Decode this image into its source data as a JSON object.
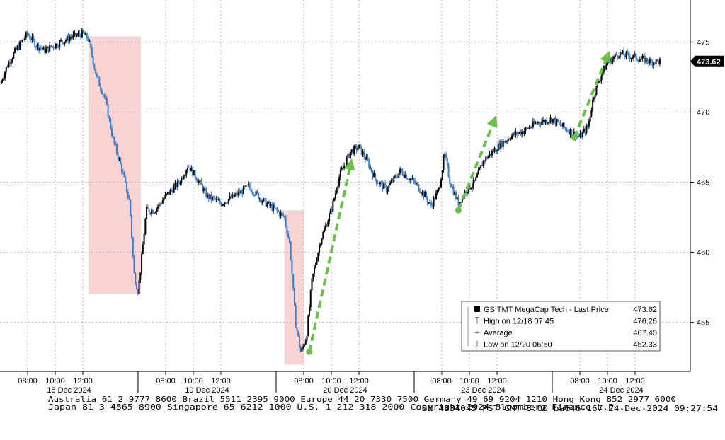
{
  "chart_data": {
    "type": "candlestick",
    "instrument": "GS TMT MegaCap Tech",
    "y_range": [
      451.5,
      478
    ],
    "y_ticks": [
      455,
      460,
      465,
      470,
      475
    ],
    "grid": true,
    "last_price": 473.62,
    "days": [
      {
        "label": "18 Dec 2024",
        "times": [
          "08:00",
          "10:00",
          "12:00"
        ]
      },
      {
        "label": "19 Dec 2024",
        "times": [
          "08:00",
          "10:00",
          "12:00"
        ]
      },
      {
        "label": "20 Dec 2024",
        "times": [
          "08:00",
          "10:00",
          "12:00"
        ]
      },
      {
        "label": "23 Dec 2024",
        "times": [
          "08:00",
          "10:00",
          "12:00"
        ]
      },
      {
        "label": "24 Dec 2024",
        "times": [
          "08:00",
          "10:00",
          "12:00"
        ]
      }
    ],
    "series": [
      {
        "x": 0.0,
        "y": 472
      },
      {
        "x": 0.3,
        "y": 473.5
      },
      {
        "x": 0.6,
        "y": 474.5
      },
      {
        "x": 1.0,
        "y": 475.6
      },
      {
        "x": 1.3,
        "y": 474.8
      },
      {
        "x": 1.6,
        "y": 474.4
      },
      {
        "x": 2.0,
        "y": 474.8
      },
      {
        "x": 2.5,
        "y": 475.3
      },
      {
        "x": 3.0,
        "y": 475.6
      },
      {
        "x": 3.2,
        "y": 475.2
      },
      {
        "x": 3.5,
        "y": 472.5
      },
      {
        "x": 3.8,
        "y": 471
      },
      {
        "x": 4.1,
        "y": 468
      },
      {
        "x": 4.4,
        "y": 466
      },
      {
        "x": 4.7,
        "y": 463.5
      },
      {
        "x": 4.85,
        "y": 458.5
      },
      {
        "x": 5.0,
        "y": 457.2
      },
      {
        "x": 5.1,
        "y": 459
      },
      {
        "x": 5.3,
        "y": 463
      },
      {
        "x": 5.6,
        "y": 463
      },
      {
        "x": 6.0,
        "y": 464
      },
      {
        "x": 6.5,
        "y": 465
      },
      {
        "x": 6.8,
        "y": 466.2
      },
      {
        "x": 7.1,
        "y": 465.4
      },
      {
        "x": 7.5,
        "y": 464
      },
      {
        "x": 8.0,
        "y": 463.5
      },
      {
        "x": 8.5,
        "y": 464
      },
      {
        "x": 9.0,
        "y": 464.7
      },
      {
        "x": 9.5,
        "y": 463.7
      },
      {
        "x": 10.0,
        "y": 463
      },
      {
        "x": 10.3,
        "y": 462.5
      },
      {
        "x": 10.5,
        "y": 460.5
      },
      {
        "x": 10.7,
        "y": 455
      },
      {
        "x": 10.9,
        "y": 452.8
      },
      {
        "x": 11.1,
        "y": 454
      },
      {
        "x": 11.3,
        "y": 458
      },
      {
        "x": 11.6,
        "y": 460.8
      },
      {
        "x": 12.0,
        "y": 463
      },
      {
        "x": 12.3,
        "y": 465.5
      },
      {
        "x": 12.7,
        "y": 467.2
      },
      {
        "x": 13.0,
        "y": 467.5
      },
      {
        "x": 13.3,
        "y": 466.5
      },
      {
        "x": 13.6,
        "y": 465.2
      },
      {
        "x": 14.0,
        "y": 464.5
      },
      {
        "x": 14.5,
        "y": 465.8
      },
      {
        "x": 15.0,
        "y": 465
      },
      {
        "x": 15.4,
        "y": 464
      },
      {
        "x": 15.6,
        "y": 463.3
      },
      {
        "x": 15.9,
        "y": 464.5
      },
      {
        "x": 16.1,
        "y": 467
      },
      {
        "x": 16.3,
        "y": 465
      },
      {
        "x": 16.6,
        "y": 463.5
      },
      {
        "x": 16.9,
        "y": 464.5
      },
      {
        "x": 17.2,
        "y": 465
      },
      {
        "x": 17.5,
        "y": 466.5
      },
      {
        "x": 18.0,
        "y": 467.5
      },
      {
        "x": 18.5,
        "y": 468.3
      },
      {
        "x": 19.0,
        "y": 468.7
      },
      {
        "x": 19.5,
        "y": 469.3
      },
      {
        "x": 20.0,
        "y": 469.5
      },
      {
        "x": 20.5,
        "y": 468.8
      },
      {
        "x": 21.0,
        "y": 468.2
      },
      {
        "x": 21.3,
        "y": 469
      },
      {
        "x": 21.5,
        "y": 471.2
      },
      {
        "x": 21.8,
        "y": 472.8
      },
      {
        "x": 22.0,
        "y": 473.5
      },
      {
        "x": 22.4,
        "y": 474.2
      },
      {
        "x": 22.8,
        "y": 474
      },
      {
        "x": 23.2,
        "y": 473.8
      },
      {
        "x": 23.6,
        "y": 473.6
      },
      {
        "x": 23.9,
        "y": 473.62
      }
    ],
    "shaded_regions": [
      {
        "x0": 3.2,
        "x1": 5.1,
        "y0": 457,
        "y1": 475.4
      },
      {
        "x0": 10.3,
        "x1": 11.0,
        "y0": 452,
        "y1": 463
      }
    ],
    "arrows": [
      {
        "from": [
          11.2,
          452.9
        ],
        "to": [
          12.7,
          466.3
        ]
      },
      {
        "from": [
          16.6,
          463
        ],
        "to": [
          17.9,
          469.4
        ]
      },
      {
        "from": [
          20.8,
          468.2
        ],
        "to": [
          22.0,
          474.0
        ]
      }
    ],
    "legend": {
      "title": "GS TMT MegaCap Tech - Last Price",
      "title_value": "473.62",
      "rows": [
        {
          "label": "High on 12/18 07:45",
          "value": "476.26"
        },
        {
          "label": "Average",
          "value": "467.40"
        },
        {
          "label": "Low on 12/20 06:50",
          "value": "452.33"
        }
      ]
    },
    "footer": {
      "line1": "Australia 61 2 9777 8600 Brazil 5511 2395 9000 Europe 44 20 7330 7500 Germany 49 69 9204 1210 Hong Kong 852 2977 6000",
      "line2": "Japan 81 3 4565 8900        Singapore 65 6212 1000         U.S. 1 212 318 2000         Copyright 2024 Bloomberg Finance L.P.",
      "line3": "SN 4334045 PST  GMT-8:00 ba646-167 24-Dec-2024 09:27:54"
    },
    "colors": {
      "up": "#000000",
      "down": "#3a7cc4",
      "shade": "#f4b6b6",
      "arrow": "#6cc04a",
      "grid": "#b4b4b4",
      "axis": "#000000"
    }
  }
}
